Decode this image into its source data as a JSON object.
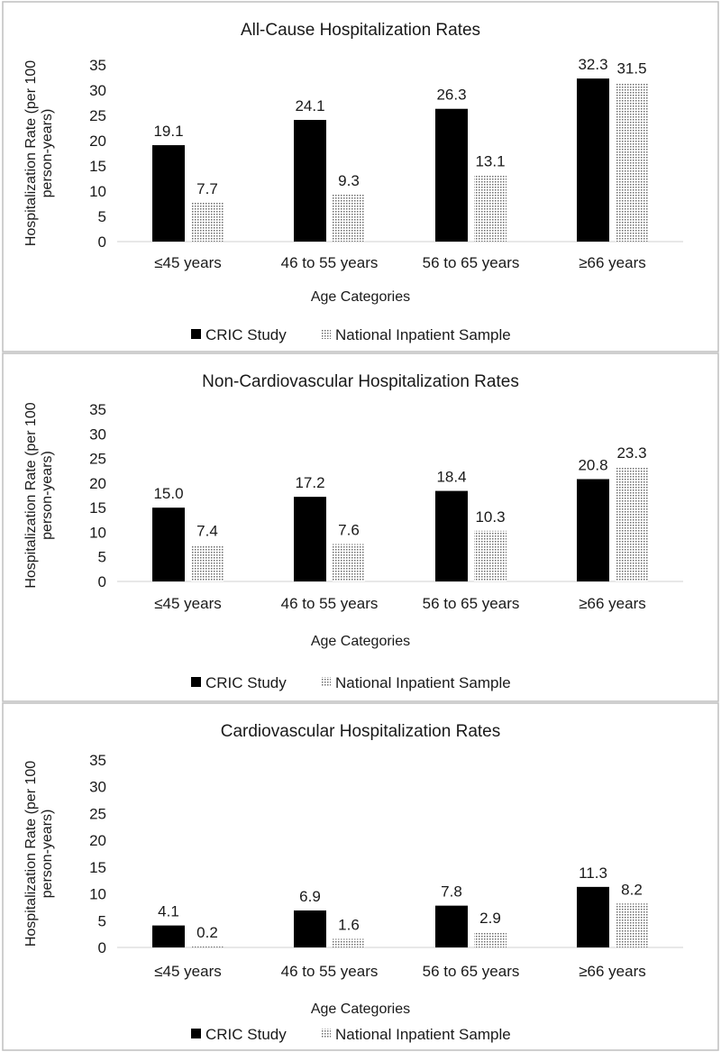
{
  "chart_data": [
    {
      "type": "bar",
      "title": "All-Cause Hospitalization Rates",
      "xlabel": "Age Categories",
      "ylabel": "Hospitalization Rate (per 100 person-years)",
      "ylim": [
        0,
        35
      ],
      "yticks": [
        "0",
        "5",
        "10",
        "15",
        "20",
        "25",
        "30",
        "35"
      ],
      "categories": [
        "≤45 years",
        "46 to 55 years",
        "56 to 65 years",
        "≥66 years"
      ],
      "series": [
        {
          "name": "CRIC Study",
          "values": [
            19.1,
            24.1,
            26.3,
            32.3
          ],
          "labels": [
            "19.1",
            "24.1",
            "26.3",
            "32.3"
          ]
        },
        {
          "name": "National Inpatient Sample",
          "values": [
            7.7,
            9.3,
            13.1,
            31.5
          ],
          "labels": [
            "7.7",
            "9.3",
            "13.1",
            "31.5"
          ]
        }
      ],
      "legend": "bottom"
    },
    {
      "type": "bar",
      "title": "Non-Cardiovascular Hospitalization Rates",
      "xlabel": "Age Categories",
      "ylabel": "Hospitalization Rate (per 100 person-years)",
      "ylim": [
        0,
        35
      ],
      "yticks": [
        "0",
        "5",
        "10",
        "15",
        "20",
        "25",
        "30",
        "35"
      ],
      "categories": [
        "≤45 years",
        "46 to 55 years",
        "56 to 65 years",
        "≥66 years"
      ],
      "series": [
        {
          "name": "CRIC Study",
          "values": [
            15.0,
            17.2,
            18.4,
            20.8
          ],
          "labels": [
            "15.0",
            "17.2",
            "18.4",
            "20.8"
          ]
        },
        {
          "name": "National Inpatient Sample",
          "values": [
            7.4,
            7.6,
            10.3,
            23.3
          ],
          "labels": [
            "7.4",
            "7.6",
            "10.3",
            "23.3"
          ]
        }
      ],
      "legend": "bottom"
    },
    {
      "type": "bar",
      "title": "Cardiovascular Hospitalization Rates",
      "xlabel": "Age Categories",
      "ylabel": "Hospitalization Rate (per 100 person-years)",
      "ylim": [
        0,
        35
      ],
      "yticks": [
        "0",
        "5",
        "10",
        "15",
        "20",
        "25",
        "30",
        "35"
      ],
      "categories": [
        "≤45 years",
        "46 to 55 years",
        "56 to 65 years",
        "≥66 years"
      ],
      "series": [
        {
          "name": "CRIC Study",
          "values": [
            4.1,
            6.9,
            7.8,
            11.3
          ],
          "labels": [
            "4.1",
            "6.9",
            "7.8",
            "11.3"
          ]
        },
        {
          "name": "National Inpatient Sample",
          "values": [
            0.2,
            1.6,
            2.9,
            8.2
          ],
          "labels": [
            "0.2",
            "1.6",
            "2.9",
            "8.2"
          ]
        }
      ],
      "legend": "bottom"
    }
  ],
  "colors": {
    "cric": "#000000",
    "nis_dots": "#6e6e6e",
    "nis_bg": "#ffffff"
  }
}
